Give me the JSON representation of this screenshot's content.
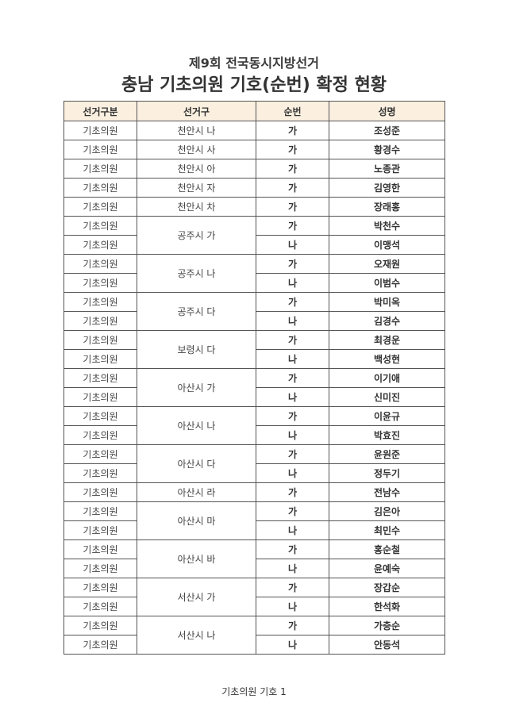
{
  "header": {
    "subtitle": "제9회 전국동시지방선거",
    "title": "충남 기초의원 기호(순번) 확정 현황"
  },
  "table": {
    "columns": [
      "선거구분",
      "선거구",
      "순번",
      "성명"
    ],
    "election_type": "기초의원",
    "groups": [
      {
        "district": "천안시 나",
        "candidates": [
          {
            "order": "가",
            "name": "조성준"
          }
        ]
      },
      {
        "district": "천안시 사",
        "candidates": [
          {
            "order": "가",
            "name": "황경수"
          }
        ]
      },
      {
        "district": "천안시 아",
        "candidates": [
          {
            "order": "가",
            "name": "노종관"
          }
        ]
      },
      {
        "district": "천안시 자",
        "candidates": [
          {
            "order": "가",
            "name": "김영한"
          }
        ]
      },
      {
        "district": "천안시 차",
        "candidates": [
          {
            "order": "가",
            "name": "장래홍"
          }
        ]
      },
      {
        "district": "공주시 가",
        "candidates": [
          {
            "order": "가",
            "name": "박천수"
          },
          {
            "order": "나",
            "name": "이맹석"
          }
        ]
      },
      {
        "district": "공주시 나",
        "candidates": [
          {
            "order": "가",
            "name": "오재원"
          },
          {
            "order": "나",
            "name": "이범수"
          }
        ]
      },
      {
        "district": "공주시 다",
        "candidates": [
          {
            "order": "가",
            "name": "박미옥"
          },
          {
            "order": "나",
            "name": "김경수"
          }
        ]
      },
      {
        "district": "보령시 다",
        "candidates": [
          {
            "order": "가",
            "name": "최경운"
          },
          {
            "order": "나",
            "name": "백성현"
          }
        ]
      },
      {
        "district": "아산시 가",
        "candidates": [
          {
            "order": "가",
            "name": "이기애"
          },
          {
            "order": "나",
            "name": "신미진"
          }
        ]
      },
      {
        "district": "아산시 나",
        "candidates": [
          {
            "order": "가",
            "name": "이윤규"
          },
          {
            "order": "나",
            "name": "박효진"
          }
        ]
      },
      {
        "district": "아산시 다",
        "candidates": [
          {
            "order": "가",
            "name": "윤원준"
          },
          {
            "order": "나",
            "name": "정두기"
          }
        ]
      },
      {
        "district": "아산시 라",
        "candidates": [
          {
            "order": "가",
            "name": "전남수"
          }
        ]
      },
      {
        "district": "아산시 마",
        "candidates": [
          {
            "order": "가",
            "name": "김은아"
          },
          {
            "order": "나",
            "name": "최민수"
          }
        ]
      },
      {
        "district": "아산시 바",
        "candidates": [
          {
            "order": "가",
            "name": "홍순철"
          },
          {
            "order": "나",
            "name": "윤예숙"
          }
        ]
      },
      {
        "district": "서산시 가",
        "candidates": [
          {
            "order": "가",
            "name": "장갑순"
          },
          {
            "order": "나",
            "name": "한석화"
          }
        ]
      },
      {
        "district": "서산시 나",
        "candidates": [
          {
            "order": "가",
            "name": "가충순"
          },
          {
            "order": "나",
            "name": "안동석"
          }
        ]
      }
    ]
  },
  "footer": {
    "page_label": "기초의원 기호 1"
  }
}
